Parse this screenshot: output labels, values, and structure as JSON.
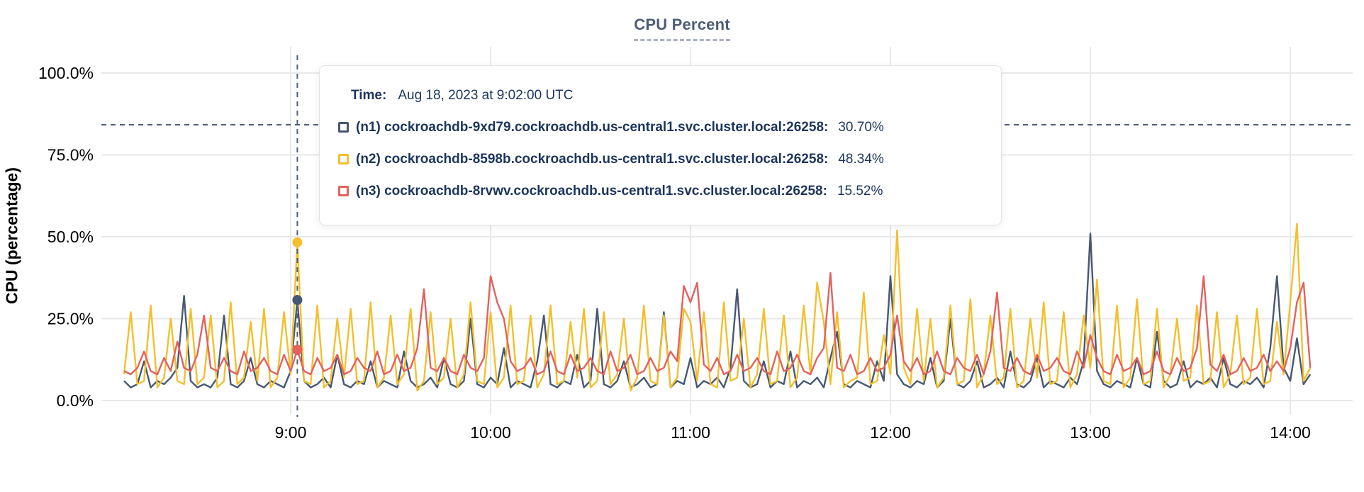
{
  "title": "CPU Percent",
  "y_axis_title": "CPU (percentage)",
  "tooltip": {
    "time_label": "Time:",
    "time_value": "Aug 18, 2023 at 9:02:00 UTC",
    "series": [
      {
        "label": "(n1) cockroachdb-9xd79.cockroachdb.us-central1.svc.cluster.local:26258:",
        "value": "30.70%",
        "color": "#475872"
      },
      {
        "label": "(n2) cockroachdb-8598b.cockroachdb.us-central1.svc.cluster.local:26258:",
        "value": "48.34%",
        "color": "#f3bf2d"
      },
      {
        "label": "(n3) cockroachdb-8rvwv.cockroachdb.us-central1.svc.cluster.local:26258:",
        "value": "15.52%",
        "color": "#e2625e"
      }
    ]
  },
  "chart_data": {
    "type": "line",
    "title": "CPU Percent",
    "xlabel": "",
    "ylabel": "CPU (percentage)",
    "ylim": [
      0,
      100
    ],
    "grid": true,
    "x_unit": "time of day (UTC), sampled every 2 minutes",
    "x_start_min": 490,
    "x_step_min": 2,
    "x_end_min": 846,
    "xticks": [
      {
        "t": 540,
        "label": "9:00"
      },
      {
        "t": 600,
        "label": "10:00"
      },
      {
        "t": 660,
        "label": "11:00"
      },
      {
        "t": 720,
        "label": "12:00"
      },
      {
        "t": 780,
        "label": "13:00"
      },
      {
        "t": 840,
        "label": "14:00"
      }
    ],
    "yticks": [
      {
        "v": 0,
        "label": "0.0%"
      },
      {
        "v": 25,
        "label": "25.0%"
      },
      {
        "v": 50,
        "label": "50.0%"
      },
      {
        "v": 75,
        "label": "75.0%"
      },
      {
        "v": 100,
        "label": "100.0%"
      }
    ],
    "cursor": {
      "time_min": 542,
      "time_label": "Aug 18, 2023 at 9:02:00 UTC",
      "y_percent": 84.2
    },
    "series": [
      {
        "name": "(n1) cockroachdb-9xd79.cockroachdb.us-central1.svc.cluster.local:26258",
        "short": "n1",
        "color": "#475872",
        "value_at_cursor": 30.7,
        "values": [
          6,
          4,
          5,
          12,
          4,
          6,
          5,
          7,
          10,
          32,
          6,
          4,
          5,
          4,
          7,
          26,
          5,
          4,
          6,
          13,
          5,
          4,
          6,
          5,
          4,
          9,
          30.7,
          6,
          4,
          5,
          7,
          4,
          14,
          5,
          4,
          6,
          5,
          12,
          4,
          6,
          5,
          4,
          15,
          6,
          4,
          5,
          7,
          4,
          13,
          5,
          4,
          6,
          25,
          5,
          4,
          7,
          5,
          16,
          4,
          6,
          5,
          4,
          12,
          26,
          5,
          4,
          6,
          5,
          14,
          4,
          6,
          28,
          5,
          4,
          6,
          12,
          4,
          5,
          7,
          4,
          5,
          27,
          4,
          6,
          5,
          13,
          4,
          6,
          5,
          7,
          4,
          10,
          34,
          6,
          4,
          5,
          12,
          4,
          6,
          5,
          15,
          4,
          6,
          5,
          7,
          4,
          13,
          21,
          5,
          4,
          6,
          5,
          4,
          12,
          6,
          38,
          8,
          5,
          4,
          6,
          5,
          13,
          4,
          6,
          25,
          5,
          4,
          6,
          12,
          4,
          5,
          7,
          4,
          15,
          5,
          4,
          6,
          13,
          4,
          6,
          5,
          4,
          7,
          5,
          12,
          51,
          9,
          5,
          4,
          6,
          5,
          4,
          13,
          5,
          4,
          21,
          6,
          4,
          5,
          12,
          4,
          6,
          5,
          7,
          4,
          13,
          5,
          4,
          6,
          5,
          7,
          4,
          16,
          38,
          10,
          6,
          19,
          5,
          8
        ]
      },
      {
        "name": "(n2) cockroachdb-8598b.cockroachdb.us-central1.svc.cluster.local:26258",
        "short": "n2",
        "color": "#f3bf2d",
        "value_at_cursor": 48.34,
        "values": [
          8,
          27,
          5,
          6,
          29,
          4,
          7,
          25,
          6,
          5,
          28,
          5,
          7,
          26,
          4,
          6,
          30,
          5,
          7,
          24,
          6,
          28,
          4,
          7,
          27,
          8,
          48.3,
          6,
          5,
          29,
          4,
          6,
          25,
          7,
          28,
          5,
          6,
          30,
          4,
          7,
          26,
          5,
          8,
          28,
          3,
          6,
          27,
          5,
          7,
          25,
          4,
          8,
          30,
          6,
          5,
          27,
          4,
          7,
          29,
          5,
          6,
          26,
          4,
          8,
          29,
          5,
          6,
          24,
          7,
          28,
          4,
          6,
          27,
          5,
          8,
          25,
          3,
          7,
          29,
          6,
          5,
          26,
          4,
          7,
          28,
          24,
          6,
          27,
          5,
          4,
          30,
          6,
          7,
          25,
          4,
          8,
          28,
          5,
          6,
          26,
          4,
          7,
          29,
          8,
          36,
          24,
          5,
          27,
          4,
          6,
          7,
          33,
          5,
          6,
          20,
          8,
          52,
          10,
          5,
          28,
          6,
          25,
          4,
          7,
          29,
          5,
          6,
          31,
          4,
          8,
          26,
          5,
          7,
          28,
          4,
          6,
          25,
          7,
          30,
          5,
          6,
          27,
          4,
          8,
          26,
          10,
          37,
          6,
          5,
          29,
          4,
          7,
          31,
          5,
          6,
          28,
          4,
          8,
          25,
          6,
          7,
          29,
          5,
          6,
          27,
          4,
          8,
          26,
          5,
          7,
          28,
          5,
          6,
          24,
          8,
          30,
          54,
          6,
          10
        ]
      },
      {
        "name": "(n3) cockroachdb-8rvwv.cockroachdb.us-central1.svc.cluster.local:26258",
        "short": "n3",
        "color": "#e2625e",
        "value_at_cursor": 15.52,
        "values": [
          9,
          8,
          10,
          15,
          9,
          8,
          13,
          9,
          18,
          10,
          9,
          14,
          26,
          10,
          9,
          13,
          9,
          8,
          15,
          9,
          10,
          13,
          9,
          8,
          14,
          9,
          15.5,
          9,
          8,
          13,
          9,
          10,
          14,
          8,
          9,
          13,
          10,
          9,
          15,
          8,
          9,
          14,
          9,
          10,
          16,
          34,
          10,
          9,
          13,
          9,
          8,
          14,
          10,
          9,
          13,
          38,
          30,
          25,
          12,
          9,
          10,
          13,
          8,
          9,
          15,
          9,
          8,
          14,
          9,
          10,
          13,
          9,
          8,
          15,
          9,
          10,
          14,
          8,
          9,
          13,
          9,
          10,
          15,
          12,
          35,
          30,
          36,
          11,
          9,
          13,
          8,
          9,
          14,
          9,
          10,
          13,
          9,
          8,
          15,
          9,
          10,
          14,
          9,
          8,
          13,
          16,
          39,
          10,
          9,
          14,
          8,
          9,
          13,
          9,
          10,
          14,
          26,
          12,
          9,
          13,
          8,
          9,
          15,
          9,
          8,
          13,
          10,
          9,
          14,
          8,
          15,
          33,
          10,
          9,
          13,
          9,
          8,
          14,
          9,
          10,
          13,
          9,
          8,
          15,
          10,
          20,
          13,
          9,
          8,
          14,
          9,
          10,
          13,
          8,
          9,
          15,
          9,
          8,
          13,
          9,
          10,
          16,
          38,
          11,
          9,
          14,
          8,
          9,
          13,
          9,
          10,
          14,
          9,
          12,
          9,
          16,
          30,
          36,
          10
        ]
      }
    ]
  },
  "colors": {
    "title": "#4d5d77",
    "tooltip_text": "#1c355d",
    "gridline": "#e9e9e9",
    "crosshair": "#4f617b",
    "axis_text": "#000000"
  }
}
